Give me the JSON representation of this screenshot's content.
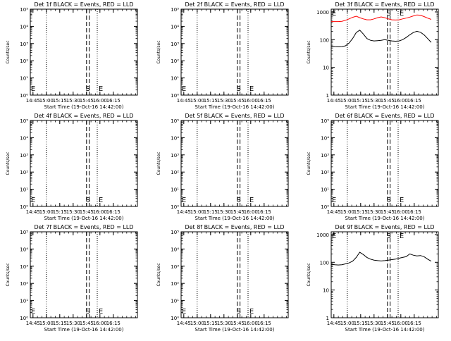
{
  "page": {
    "background": "#ffffff"
  },
  "colors": {
    "axis": "#000000",
    "events": "#000000",
    "lld": "#ff0000"
  },
  "common": {
    "xlabel": "Start Time (19-Oct-16 14:42:00)",
    "ylabel": "Counts/sec",
    "xticks": [
      "14:45",
      "15:00",
      "15:15",
      "15:30",
      "15:45",
      "16:00",
      "16:15"
    ],
    "marker_s": "S",
    "marker_e": "E"
  },
  "chart_data": [
    {
      "type": "line",
      "detector": "1f",
      "title": "Det 1f BLACK = Events, RED = LLD",
      "scale": "log",
      "yticks": [
        "10⁰",
        "10¹",
        "10²",
        "10³",
        "10⁴",
        "10⁵"
      ],
      "series": []
    },
    {
      "type": "line",
      "detector": "2f",
      "title": "Det 2f BLACK = Events, RED = LLD",
      "scale": "log",
      "yticks": [
        "10⁰",
        "10¹",
        "10²",
        "10³",
        "10⁴",
        "10⁵"
      ],
      "series": []
    },
    {
      "type": "line",
      "detector": "3f",
      "title": "Det 3f BLACK = Events, RED = LLD",
      "scale": "log",
      "yticks": [
        "1",
        "10",
        "100",
        "1000"
      ],
      "series": [
        {
          "role": "LLD",
          "color": "#ff0000",
          "x": [
            0,
            4,
            8,
            12,
            16,
            20,
            24,
            28,
            32,
            36,
            40,
            44,
            48,
            52,
            56,
            60,
            64,
            68,
            72,
            76,
            80,
            84,
            88,
            92,
            96,
            100,
            104,
            108,
            112
          ],
          "y": [
            450,
            450,
            450,
            460,
            500,
            560,
            640,
            700,
            620,
            560,
            520,
            520,
            560,
            620,
            660,
            620,
            560,
            520,
            510,
            520,
            560,
            600,
            650,
            720,
            780,
            760,
            680,
            600,
            540
          ]
        },
        {
          "role": "Events",
          "color": "#000000",
          "x": [
            0,
            4,
            8,
            12,
            16,
            20,
            24,
            28,
            32,
            36,
            40,
            44,
            48,
            52,
            56,
            60,
            64,
            68,
            72,
            76,
            80,
            84,
            88,
            92,
            96,
            100,
            104,
            108,
            112
          ],
          "y": [
            58,
            56,
            55,
            56,
            60,
            75,
            110,
            180,
            220,
            160,
            110,
            95,
            90,
            92,
            95,
            100,
            95,
            90,
            88,
            90,
            100,
            120,
            150,
            180,
            200,
            185,
            150,
            110,
            80
          ]
        }
      ]
    },
    {
      "type": "line",
      "detector": "4f",
      "title": "Det 4f BLACK = Events, RED = LLD",
      "scale": "log",
      "yticks": [
        "10⁰",
        "10¹",
        "10²",
        "10³",
        "10⁴",
        "10⁵"
      ],
      "series": []
    },
    {
      "type": "line",
      "detector": "5f",
      "title": "Det 5f BLACK = Events, RED = LLD",
      "scale": "log",
      "yticks": [
        "10⁰",
        "10¹",
        "10²",
        "10³",
        "10⁴",
        "10⁵"
      ],
      "series": []
    },
    {
      "type": "line",
      "detector": "6f",
      "title": "Det 6f BLACK = Events, RED = LLD",
      "scale": "log",
      "yticks": [
        "10⁰",
        "10¹",
        "10²",
        "10³",
        "10⁴",
        "10⁵"
      ],
      "series": []
    },
    {
      "type": "line",
      "detector": "7f",
      "title": "Det 7f BLACK = Events, RED = LLD",
      "scale": "log",
      "yticks": [
        "10⁰",
        "10¹",
        "10²",
        "10³",
        "10⁴",
        "10⁵"
      ],
      "series": []
    },
    {
      "type": "line",
      "detector": "8f",
      "title": "Det 8f BLACK = Events, RED = LLD",
      "scale": "log",
      "yticks": [
        "10⁰",
        "10¹",
        "10²",
        "10³",
        "10⁴",
        "10⁵"
      ],
      "series": []
    },
    {
      "type": "line",
      "detector": "9f",
      "title": "Det 9f BLACK = Events, RED = LLD",
      "scale": "log",
      "yticks": [
        "1",
        "10",
        "100",
        "1000"
      ],
      "series": [
        {
          "role": "Events",
          "color": "#000000",
          "x": [
            0,
            4,
            8,
            12,
            16,
            20,
            24,
            28,
            32,
            36,
            40,
            44,
            48,
            52,
            56,
            60,
            64,
            68,
            72,
            76,
            80,
            84,
            88,
            92,
            96,
            100,
            104,
            108,
            112
          ],
          "y": [
            85,
            82,
            80,
            82,
            88,
            95,
            110,
            150,
            230,
            190,
            150,
            130,
            120,
            115,
            112,
            115,
            120,
            125,
            130,
            140,
            150,
            160,
            200,
            180,
            170,
            175,
            160,
            130,
            110
          ]
        }
      ]
    }
  ]
}
